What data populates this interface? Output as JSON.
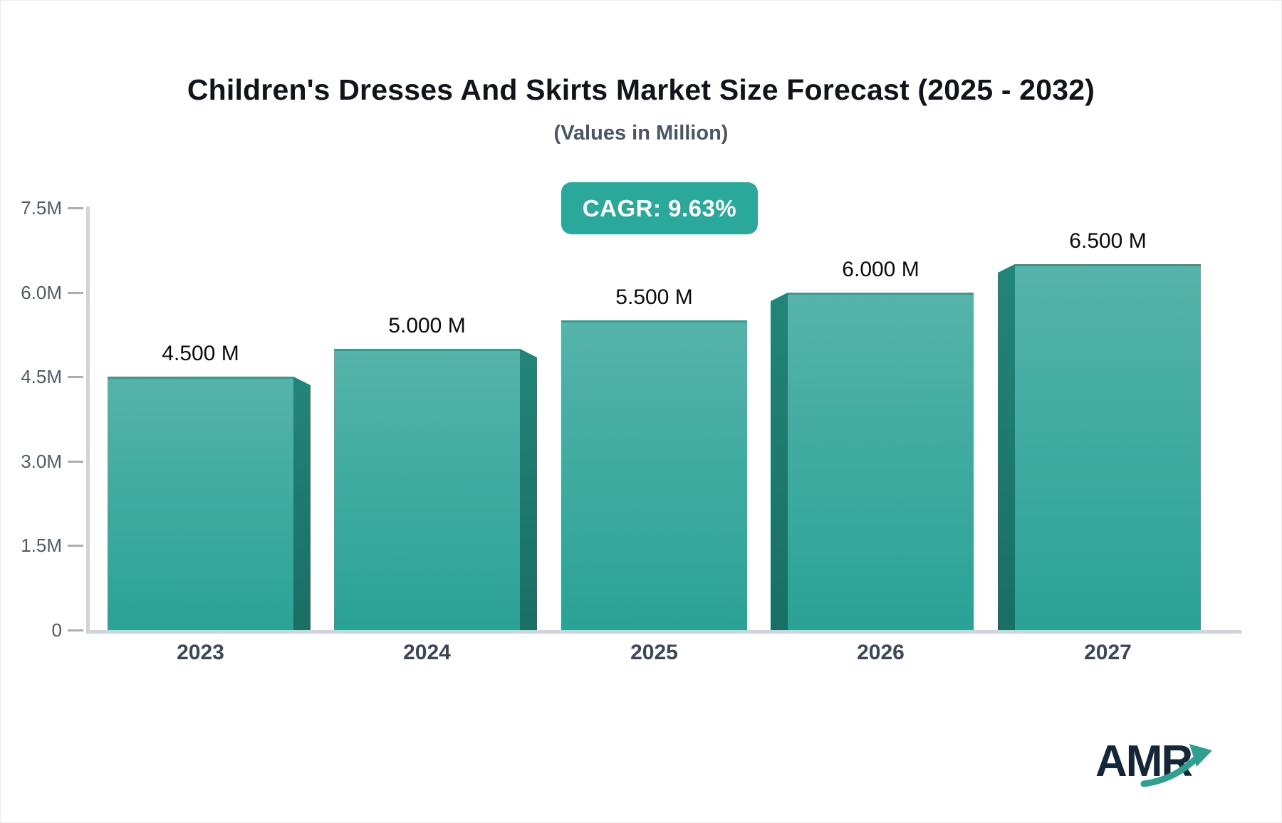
{
  "header": {
    "title": "Children's Dresses And Skirts Market Size Forecast (2025 - 2032)",
    "subtitle": "(Values in Million)",
    "cagr_label": "CAGR: 9.63%"
  },
  "logo": {
    "text": "AMR"
  },
  "colors": {
    "bar_face_top": "#55b3aa",
    "bar_face_bottom": "#2aa295",
    "bar_side_top": "#22857a",
    "bar_side_bottom": "#1a6e64",
    "badge_bg": "#2aa99a",
    "axis_line": "#cfd4dc",
    "tick_dash": "#a7aeb8",
    "tick_text": "#4f5b67",
    "x_label_text": "#3c4857",
    "value_label_text": "#0b0b0b",
    "title_text": "#10151b",
    "subtitle_text": "#4b5665",
    "logo_text": "#152638",
    "logo_arrow": "#2f9f92"
  },
  "chart_data": {
    "type": "bar",
    "title": "Children's Dresses And Skirts Market Size Forecast (2025 - 2032)",
    "subtitle": "(Values in Million)",
    "annotation": "CAGR: 9.63%",
    "categories": [
      "2023",
      "2024",
      "2025",
      "2026",
      "2027"
    ],
    "values": [
      4.5,
      5.0,
      5.5,
      6.0,
      6.5
    ],
    "value_labels": [
      "4.500 M",
      "5.000 M",
      "5.500 M",
      "6.000 M",
      "6.500 M"
    ],
    "unit": "Million",
    "xlabel": "",
    "ylabel": "",
    "ylim": [
      0,
      7.5
    ],
    "y_ticks": [
      "0",
      "1.5M",
      "3.0M",
      "4.5M",
      "6.0M",
      "7.5M"
    ],
    "y_tick_values": [
      0,
      1.5,
      3.0,
      4.5,
      6.0,
      7.5
    ],
    "grid": false,
    "legend": "none"
  }
}
